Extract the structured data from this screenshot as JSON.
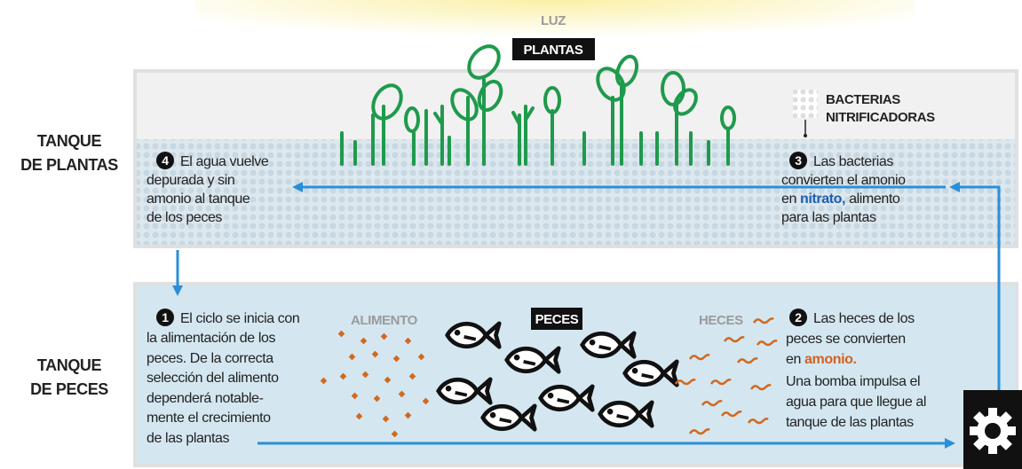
{
  "sky_label": "LUZ",
  "plants_label": "PLANTAS",
  "tanks": {
    "plants": [
      "TANQUE",
      "DE PLANTAS"
    ],
    "fish": [
      "TANQUE",
      "DE PECES"
    ]
  },
  "bacteria_label": [
    "BACTERIAS",
    "NITRIFICADORAS"
  ],
  "fish_tank_labels": {
    "food": "ALIMENTO",
    "fish": "PECES",
    "feces": "HECES"
  },
  "steps": [
    {
      "number": "1",
      "lines": [
        "El ciclo se inicia con",
        "la alimentación de los",
        "peces. De la correcta",
        "selección del alimento",
        "dependerá notable-",
        "mente el crecimiento",
        "de las plantas"
      ]
    },
    {
      "number": "2",
      "lines": [
        "Las heces de los",
        "peces se convierten",
        [
          "en",
          "amonio."
        ],
        "Una bomba impulsa el",
        "agua para que llegue al",
        "tanque de las plantas"
      ]
    },
    {
      "number": "3",
      "lines": [
        "Las bacterias",
        "convierten el amonio",
        [
          "en",
          "nitrato,",
          "alimento"
        ],
        "para las plantas"
      ]
    },
    {
      "number": "4",
      "lines": [
        "El agua vuelve",
        "depurada y sin",
        "amonio al tanque",
        "de los peces"
      ]
    }
  ]
}
